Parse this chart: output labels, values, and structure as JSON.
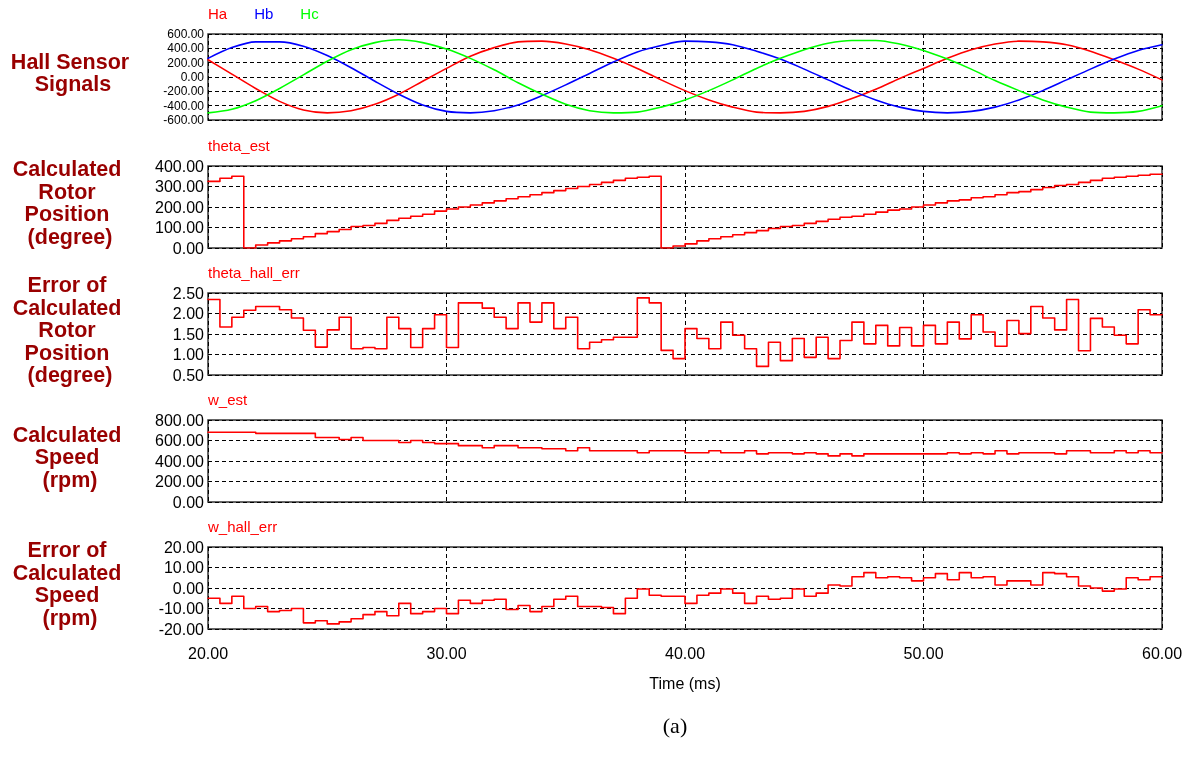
{
  "chart_data": [
    {
      "type": "line",
      "ylabel": "Hall Sensor Signals",
      "xlim": [
        20,
        60
      ],
      "xticks": [
        20,
        30,
        40,
        50,
        60
      ],
      "ylim": [
        -600,
        600
      ],
      "yticks": [
        {
          "value": -600,
          "label": "-600.00"
        },
        {
          "value": -400,
          "label": "-400.00"
        },
        {
          "value": -200,
          "label": "-200.00"
        },
        {
          "value": 0,
          "label": "0.00"
        },
        {
          "value": 200,
          "label": "200.00"
        },
        {
          "value": 400,
          "label": "400.00"
        },
        {
          "value": 600,
          "label": "600.00"
        }
      ],
      "tick_labels": "y",
      "grid": true,
      "legend": "top left",
      "x": [
        20,
        21,
        22,
        23,
        24,
        25,
        26,
        27,
        28,
        29,
        30,
        31,
        32,
        33,
        34,
        35,
        36,
        37,
        38,
        39,
        40,
        41,
        42,
        43,
        44,
        45,
        46,
        47,
        48,
        49,
        50,
        51,
        52,
        53,
        54,
        55,
        56,
        57,
        58,
        59,
        60
      ],
      "series": [
        {
          "name": "Ha",
          "color": "#ff0000",
          "values": [
            240,
            40,
            -160,
            -340,
            -460,
            -500,
            -470,
            -380,
            -240,
            -60,
            120,
            290,
            410,
            490,
            500,
            460,
            380,
            260,
            120,
            -40,
            -190,
            -320,
            -420,
            -490,
            -500,
            -480,
            -410,
            -300,
            -170,
            -20,
            120,
            260,
            380,
            460,
            500,
            490,
            450,
            360,
            240,
            110,
            -40
          ]
        },
        {
          "name": "Hb",
          "color": "#0000ff",
          "values": [
            260,
            410,
            490,
            490,
            430,
            300,
            130,
            -60,
            -240,
            -390,
            -480,
            -500,
            -470,
            -390,
            -260,
            -110,
            50,
            210,
            350,
            440,
            500,
            490,
            450,
            360,
            250,
            110,
            -40,
            -190,
            -320,
            -420,
            -480,
            -500,
            -480,
            -420,
            -320,
            -190,
            -40,
            110,
            250,
            370,
            450
          ]
        },
        {
          "name": "Hc",
          "color": "#00ff00",
          "values": [
            -500,
            -450,
            -330,
            -160,
            30,
            220,
            380,
            480,
            520,
            480,
            390,
            260,
            100,
            -80,
            -240,
            -380,
            -470,
            -500,
            -490,
            -420,
            -320,
            -190,
            -40,
            120,
            260,
            380,
            470,
            510,
            510,
            460,
            370,
            250,
            110,
            -50,
            -190,
            -320,
            -420,
            -490,
            -500,
            -480,
            -400
          ]
        }
      ]
    },
    {
      "type": "step",
      "ylabel": "Calculated Rotor Position (degree)",
      "xlim": [
        20,
        60
      ],
      "xticks": [
        20,
        30,
        40,
        50,
        60
      ],
      "ylim": [
        0,
        400
      ],
      "yticks": [
        {
          "value": 0,
          "label": "0.00"
        },
        {
          "value": 100,
          "label": "100.00"
        },
        {
          "value": 200,
          "label": "200.00"
        },
        {
          "value": 300,
          "label": "300.00"
        },
        {
          "value": 400,
          "label": "400.00"
        }
      ],
      "tick_labels": "y",
      "grid": true,
      "legend": "top left",
      "x": [
        20,
        20.5,
        21,
        21.5,
        22,
        22.5,
        23,
        23.5,
        24,
        24.5,
        25,
        25.5,
        26,
        26.5,
        27,
        27.5,
        28,
        28.5,
        29,
        29.5,
        30,
        30.5,
        31,
        31.5,
        32,
        32.5,
        33,
        33.5,
        34,
        34.5,
        35,
        35.5,
        36,
        36.5,
        37,
        37.5,
        38,
        38.5,
        39,
        39.5,
        40,
        40.5,
        41,
        41.5,
        42,
        42.5,
        43,
        43.5,
        44,
        44.5,
        45,
        45.5,
        46,
        46.5,
        47,
        47.5,
        48,
        48.5,
        49,
        49.5,
        50,
        50.5,
        51,
        51.5,
        52,
        52.5,
        53,
        53.5,
        54,
        54.5,
        55,
        55.5,
        56,
        56.5,
        57,
        57.5,
        58,
        58.5,
        59,
        59.5,
        60
      ],
      "series": [
        {
          "name": "theta_est",
          "color": "#ff0000",
          "values": [
            325,
            340,
            350,
            0,
            15,
            25,
            35,
            45,
            55,
            70,
            80,
            90,
            105,
            110,
            120,
            135,
            145,
            155,
            165,
            180,
            190,
            200,
            210,
            220,
            230,
            240,
            250,
            260,
            270,
            280,
            290,
            300,
            310,
            320,
            330,
            340,
            345,
            350,
            0,
            10,
            20,
            35,
            45,
            55,
            65,
            75,
            85,
            95,
            105,
            110,
            120,
            130,
            140,
            150,
            155,
            165,
            175,
            185,
            190,
            200,
            210,
            220,
            230,
            235,
            245,
            250,
            260,
            270,
            275,
            285,
            295,
            305,
            310,
            320,
            330,
            340,
            345,
            350,
            355,
            360,
            360
          ]
        }
      ]
    },
    {
      "type": "step",
      "ylabel": "Error of Calculated Rotor Position (degree)",
      "xlim": [
        20,
        60
      ],
      "xticks": [
        20,
        30,
        40,
        50,
        60
      ],
      "ylim": [
        0.5,
        2.5
      ],
      "yticks": [
        {
          "value": 0.5,
          "label": "0.50"
        },
        {
          "value": 1,
          "label": "1.00"
        },
        {
          "value": 1.5,
          "label": "1.50"
        },
        {
          "value": 2,
          "label": "2.00"
        },
        {
          "value": 2.5,
          "label": "2.50"
        }
      ],
      "tick_labels": "y",
      "grid": true,
      "legend": "top left",
      "x": [
        20,
        20.5,
        21,
        21.5,
        22,
        22.5,
        23,
        23.5,
        24,
        24.5,
        25,
        25.5,
        26,
        26.5,
        27,
        27.5,
        28,
        28.5,
        29,
        29.5,
        30,
        30.5,
        31,
        31.5,
        32,
        32.5,
        33,
        33.5,
        34,
        34.5,
        35,
        35.5,
        36,
        36.5,
        37,
        37.5,
        38,
        38.5,
        39,
        39.5,
        40,
        40.5,
        41,
        41.5,
        42,
        42.5,
        43,
        43.5,
        44,
        44.5,
        45,
        45.5,
        46,
        46.5,
        47,
        47.5,
        48,
        48.5,
        49,
        49.5,
        50,
        50.5,
        51,
        51.5,
        52,
        52.5,
        53,
        53.5,
        54,
        54.5,
        55,
        55.5,
        56,
        56.5,
        57,
        57.5,
        58,
        58.5,
        59,
        59.5,
        60
      ],
      "series": [
        {
          "name": "theta_hall_err",
          "color": "#ff0000",
          "values": [
            2.34,
            1.67,
            1.91,
            2.08,
            2.17,
            2.17,
            2.09,
            1.89,
            1.59,
            1.18,
            1.6,
            1.91,
            1.14,
            1.17,
            1.14,
            1.91,
            1.63,
            1.17,
            1.63,
            1.97,
            1.17,
            2.26,
            2.26,
            2.13,
            1.91,
            1.63,
            2.26,
            1.79,
            2.26,
            1.63,
            1.91,
            1.14,
            1.3,
            1.36,
            1.42,
            1.42,
            2.38,
            2.26,
            1.1,
            0.9,
            1.63,
            1.39,
            1.14,
            1.79,
            1.47,
            1.14,
            0.71,
            1.3,
            0.85,
            1.39,
            0.93,
            1.42,
            0.9,
            1.34,
            1.79,
            1.26,
            1.71,
            1.21,
            1.66,
            1.21,
            1.71,
            1.26,
            1.79,
            1.38,
            1.97,
            1.55,
            1.2,
            1.83,
            1.51,
            2.17,
            1.89,
            1.6,
            2.34,
            1.09,
            1.88,
            1.67,
            1.47,
            1.26,
            2.09,
            1.97,
            1.97
          ]
        }
      ]
    },
    {
      "type": "step",
      "ylabel": "Calculated Speed (rpm)",
      "xlim": [
        20,
        60
      ],
      "xticks": [
        20,
        30,
        40,
        50,
        60
      ],
      "ylim": [
        0,
        800
      ],
      "yticks": [
        {
          "value": 0,
          "label": "0.00"
        },
        {
          "value": 200,
          "label": "200.00"
        },
        {
          "value": 400,
          "label": "400.00"
        },
        {
          "value": 600,
          "label": "600.00"
        },
        {
          "value": 800,
          "label": "800.00"
        }
      ],
      "tick_labels": "y",
      "grid": true,
      "legend": "top left",
      "x": [
        20,
        20.5,
        21,
        21.5,
        22,
        22.5,
        23,
        23.5,
        24,
        24.5,
        25,
        25.5,
        26,
        26.5,
        27,
        27.5,
        28,
        28.5,
        29,
        29.5,
        30,
        30.5,
        31,
        31.5,
        32,
        32.5,
        33,
        33.5,
        34,
        34.5,
        35,
        35.5,
        36,
        36.5,
        37,
        37.5,
        38,
        38.5,
        39,
        39.5,
        40,
        40.5,
        41,
        41.5,
        42,
        42.5,
        43,
        43.5,
        44,
        44.5,
        45,
        45.5,
        46,
        46.5,
        47,
        47.5,
        48,
        48.5,
        49,
        49.5,
        50,
        50.5,
        51,
        51.5,
        52,
        52.5,
        53,
        53.5,
        54,
        54.5,
        55,
        55.5,
        56,
        56.5,
        57,
        57.5,
        58,
        58.5,
        59,
        59.5,
        60
      ],
      "series": [
        {
          "name": "w_est",
          "color": "#ff0000",
          "values": [
            680,
            680,
            680,
            680,
            670,
            670,
            670,
            670,
            670,
            630,
            630,
            610,
            630,
            600,
            600,
            600,
            580,
            600,
            580,
            570,
            570,
            550,
            550,
            530,
            550,
            550,
            530,
            530,
            520,
            520,
            500,
            530,
            500,
            500,
            500,
            500,
            480,
            500,
            500,
            500,
            480,
            480,
            500,
            480,
            480,
            500,
            470,
            480,
            480,
            470,
            480,
            470,
            450,
            470,
            450,
            470,
            470,
            470,
            470,
            470,
            470,
            470,
            480,
            470,
            480,
            470,
            500,
            470,
            480,
            480,
            480,
            470,
            500,
            500,
            480,
            480,
            500,
            480,
            500,
            480,
            480
          ]
        }
      ]
    },
    {
      "type": "step",
      "ylabel": "Error of Calculated Speed (rpm)",
      "xlabel": "Time (ms)",
      "annotations": [
        "(a)"
      ],
      "xlim": [
        20,
        60
      ],
      "xticks": [
        {
          "value": 20,
          "label": "20.00"
        },
        {
          "value": 30,
          "label": "30.00"
        },
        {
          "value": 40,
          "label": "40.00"
        },
        {
          "value": 50,
          "label": "50.00"
        },
        {
          "value": 60,
          "label": "60.00"
        }
      ],
      "ylim": [
        -20,
        20
      ],
      "yticks": [
        {
          "value": -20,
          "label": "-20.00"
        },
        {
          "value": -10,
          "label": "-10.00"
        },
        {
          "value": 0,
          "label": "0.00"
        },
        {
          "value": 10,
          "label": "10.00"
        },
        {
          "value": 20,
          "label": "20.00"
        }
      ],
      "grid": true,
      "legend": "top left",
      "x": [
        20,
        20.5,
        21,
        21.5,
        22,
        22.5,
        23,
        23.5,
        24,
        24.5,
        25,
        25.5,
        26,
        26.5,
        27,
        27.5,
        28,
        28.5,
        29,
        29.5,
        30,
        30.5,
        31,
        31.5,
        32,
        32.5,
        33,
        33.5,
        34,
        34.5,
        35,
        35.5,
        36,
        36.5,
        37,
        37.5,
        38,
        38.5,
        39,
        39.5,
        40,
        40.5,
        41,
        41.5,
        42,
        42.5,
        43,
        43.5,
        44,
        44.5,
        45,
        45.5,
        46,
        46.5,
        47,
        47.5,
        48,
        48.5,
        49,
        49.5,
        50,
        50.5,
        51,
        51.5,
        52,
        52.5,
        53,
        53.5,
        54,
        54.5,
        55,
        55.5,
        56,
        56.5,
        57,
        57.5,
        58,
        58.5,
        59,
        59.5,
        60
      ],
      "series": [
        {
          "name": "w_hall_err",
          "color": "#ff0000",
          "values": [
            -5,
            -7.5,
            -4,
            -10,
            -9,
            -11.5,
            -11,
            -10,
            -17,
            -16,
            -17.5,
            -16.5,
            -15,
            -13,
            -11.5,
            -13.5,
            -7.5,
            -12.5,
            -11.5,
            -10,
            -12.5,
            -6,
            -7.5,
            -6,
            -5.5,
            -10.5,
            -8.5,
            -11.5,
            -9,
            -5.5,
            -4,
            -9,
            -9,
            -9.5,
            -12.5,
            -5,
            -0.5,
            -3.5,
            -4,
            -4,
            -7.5,
            -3.5,
            -2.5,
            -0.5,
            -2.5,
            -7.5,
            -4,
            -5.5,
            -5,
            -0.5,
            -4,
            -2.5,
            1.5,
            1,
            5.5,
            7.5,
            5,
            5.5,
            5,
            3.5,
            5,
            7,
            4,
            7.5,
            5,
            5.5,
            1.5,
            3.5,
            3.5,
            1.5,
            7.5,
            7,
            5.5,
            1,
            0,
            -1.5,
            -0.5,
            5,
            4,
            5.5,
            5.5
          ]
        }
      ]
    }
  ]
}
